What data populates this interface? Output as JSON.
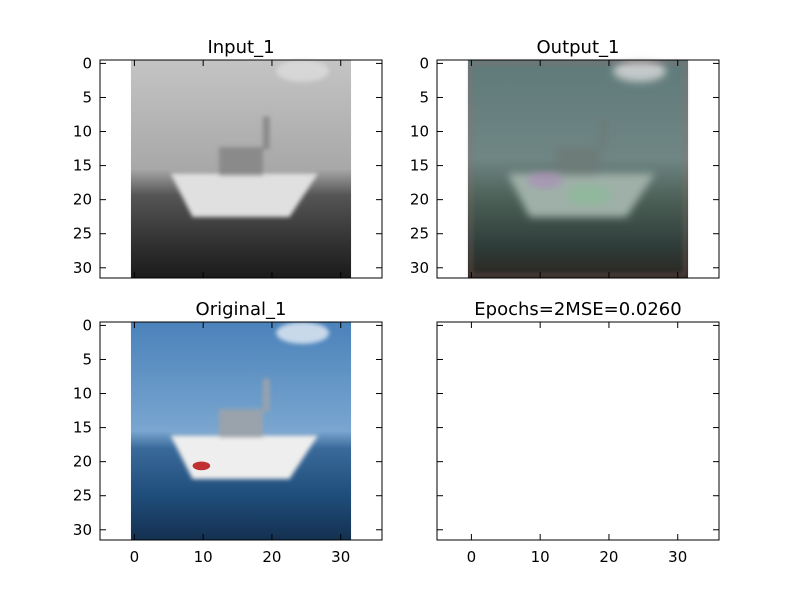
{
  "figure": {
    "background": "#ffffff"
  },
  "chart_data": [
    {
      "type": "image",
      "title": "Input_1",
      "image": "grayscale boat on water",
      "xlim": [
        -5,
        36
      ],
      "ylim": [
        31.5,
        -0.5
      ],
      "image_extent": [
        -0.5,
        31.5
      ],
      "xticks": [],
      "yticks": [
        0,
        5,
        10,
        15,
        20,
        25,
        30
      ],
      "colormap": "gray"
    },
    {
      "type": "image",
      "title": "Output_1",
      "image": "blurry reconstructed boat with color noise",
      "xlim": [
        -5,
        36
      ],
      "ylim": [
        31.5,
        -0.5
      ],
      "image_extent": [
        -0.5,
        31.5
      ],
      "xticks": [],
      "yticks": [
        0,
        5,
        10,
        15,
        20,
        25,
        30
      ]
    },
    {
      "type": "image",
      "title": "Original_1",
      "image": "color photo of white boat on blue sea",
      "xlim": [
        -5,
        36
      ],
      "ylim": [
        31.5,
        -0.5
      ],
      "image_extent": [
        -0.5,
        31.5
      ],
      "xticks": [
        0,
        10,
        20,
        30
      ],
      "yticks": [
        0,
        5,
        10,
        15,
        20,
        25,
        30
      ]
    },
    {
      "type": "image",
      "title": "Epochs=2MSE=0.0260",
      "image": "",
      "xlim": [
        -5,
        36
      ],
      "ylim": [
        31.5,
        -0.5
      ],
      "xticks": [
        0,
        10,
        20,
        30
      ],
      "yticks": []
    }
  ],
  "colors": {
    "axes": "#000000",
    "sky_gray": "#bdbdbd",
    "sea_dark": "#2a2a2a",
    "sky_blue": "#5a8fc2",
    "sea_blue": "#1f4d7a",
    "boat_white": "#e8e8e8",
    "output_green": "#4f6f68"
  }
}
